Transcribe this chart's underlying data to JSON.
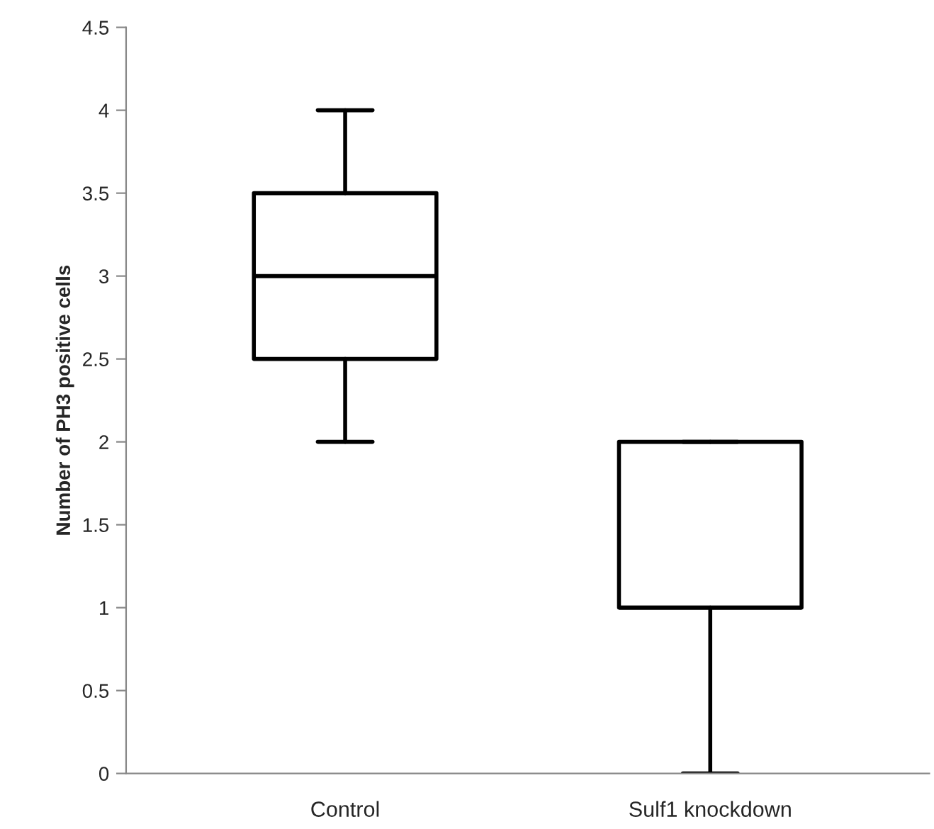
{
  "chart_data": {
    "type": "box",
    "ylabel": "Number of PH3 positive cells",
    "categories": [
      "Control",
      "Sulf1 knockdown"
    ],
    "boxes": [
      {
        "low": 2,
        "q1": 2.5,
        "median": 3,
        "q3": 3.5,
        "high": 4
      },
      {
        "low": 0,
        "q1": 1,
        "median": 1,
        "q3": 2,
        "high": 2
      }
    ],
    "ylim": [
      0,
      4.5
    ],
    "yticks": [
      0,
      0.5,
      1,
      1.5,
      2,
      2.5,
      3,
      3.5,
      4,
      4.5
    ],
    "grid": false
  }
}
